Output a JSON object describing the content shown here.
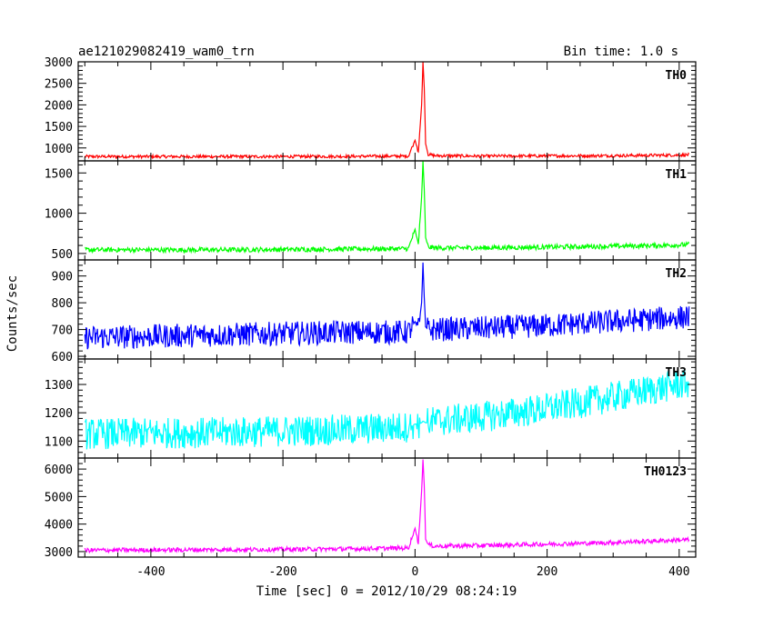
{
  "header": {
    "title": "ae121029082419_wam0_trn",
    "bin_time": "Bin time: 1.0 s"
  },
  "chart_data": {
    "type": "line",
    "title": "ae121029082419_wam0_trn",
    "xlabel": "Time [sec] 0 = 2012/10/29 08:24:19",
    "ylabel": "Counts/sec",
    "xlim": [
      -510,
      425
    ],
    "x_ticks": [
      -400,
      -200,
      0,
      200,
      400
    ],
    "x_tick_labels": [
      "-400",
      "-200",
      "0",
      "200",
      "400"
    ],
    "grid": false,
    "panels": [
      {
        "name": "TH0",
        "color": "#ff0000",
        "ylim": [
          700,
          3000
        ],
        "yticks": [
          1000,
          1500,
          2000,
          2500,
          3000
        ],
        "ytick_labels": [
          "1000",
          "1500",
          "2000",
          "2500",
          "3000"
        ],
        "x": [
          -500,
          -400,
          -300,
          -200,
          -100,
          -10,
          0,
          5,
          10,
          12,
          14,
          16,
          20,
          30,
          100,
          200,
          300,
          400,
          415
        ],
        "y": [
          800,
          800,
          800,
          800,
          805,
          810,
          1180,
          900,
          2000,
          3000,
          2400,
          1100,
          850,
          820,
          810,
          815,
          820,
          835,
          840
        ]
      },
      {
        "name": "TH1",
        "color": "#00ff00",
        "ylim": [
          420,
          1650
        ],
        "yticks": [
          500,
          1000,
          1500
        ],
        "ytick_labels": [
          "500",
          "1000",
          "1500"
        ],
        "x": [
          -500,
          -400,
          -300,
          -200,
          -100,
          -10,
          0,
          5,
          10,
          12,
          14,
          16,
          20,
          30,
          100,
          200,
          300,
          400,
          415
        ],
        "y": [
          545,
          545,
          545,
          550,
          555,
          560,
          800,
          600,
          1200,
          1650,
          1300,
          700,
          580,
          570,
          570,
          580,
          590,
          605,
          610
        ]
      },
      {
        "name": "TH2",
        "color": "#0000ff",
        "ylim": [
          590,
          960
        ],
        "yticks": [
          600,
          700,
          800,
          900
        ],
        "ytick_labels": [
          "600",
          "700",
          "800",
          "900"
        ],
        "x": [
          -500,
          -400,
          -300,
          -200,
          -100,
          -10,
          0,
          5,
          10,
          12,
          14,
          16,
          20,
          30,
          100,
          200,
          300,
          400,
          415
        ],
        "y": [
          670,
          675,
          680,
          685,
          690,
          690,
          730,
          700,
          800,
          950,
          820,
          710,
          700,
          700,
          705,
          715,
          730,
          745,
          748
        ]
      },
      {
        "name": "TH3",
        "color": "#00ffff",
        "ylim": [
          1040,
          1390
        ],
        "yticks": [
          1100,
          1200,
          1300
        ],
        "ytick_labels": [
          "1100",
          "1200",
          "1300"
        ],
        "x": [
          -500,
          -400,
          -300,
          -200,
          -100,
          -10,
          0,
          5,
          10,
          12,
          14,
          16,
          20,
          30,
          100,
          200,
          300,
          400,
          415
        ],
        "y": [
          1125,
          1128,
          1130,
          1135,
          1140,
          1150,
          1160,
          1160,
          1165,
          1170,
          1168,
          1165,
          1165,
          1170,
          1185,
          1215,
          1255,
          1300,
          1305
        ]
      },
      {
        "name": "TH0123",
        "color": "#ff00ff",
        "ylim": [
          2800,
          6400
        ],
        "yticks": [
          3000,
          4000,
          5000,
          6000
        ],
        "ytick_labels": [
          "3000",
          "4000",
          "5000",
          "6000"
        ],
        "x": [
          -500,
          -400,
          -300,
          -200,
          -100,
          -10,
          0,
          5,
          10,
          12,
          14,
          16,
          20,
          30,
          100,
          200,
          300,
          400,
          415
        ],
        "y": [
          3050,
          3060,
          3070,
          3080,
          3100,
          3130,
          3850,
          3300,
          5200,
          6350,
          5400,
          3450,
          3250,
          3200,
          3220,
          3270,
          3330,
          3420,
          3430
        ]
      }
    ]
  }
}
